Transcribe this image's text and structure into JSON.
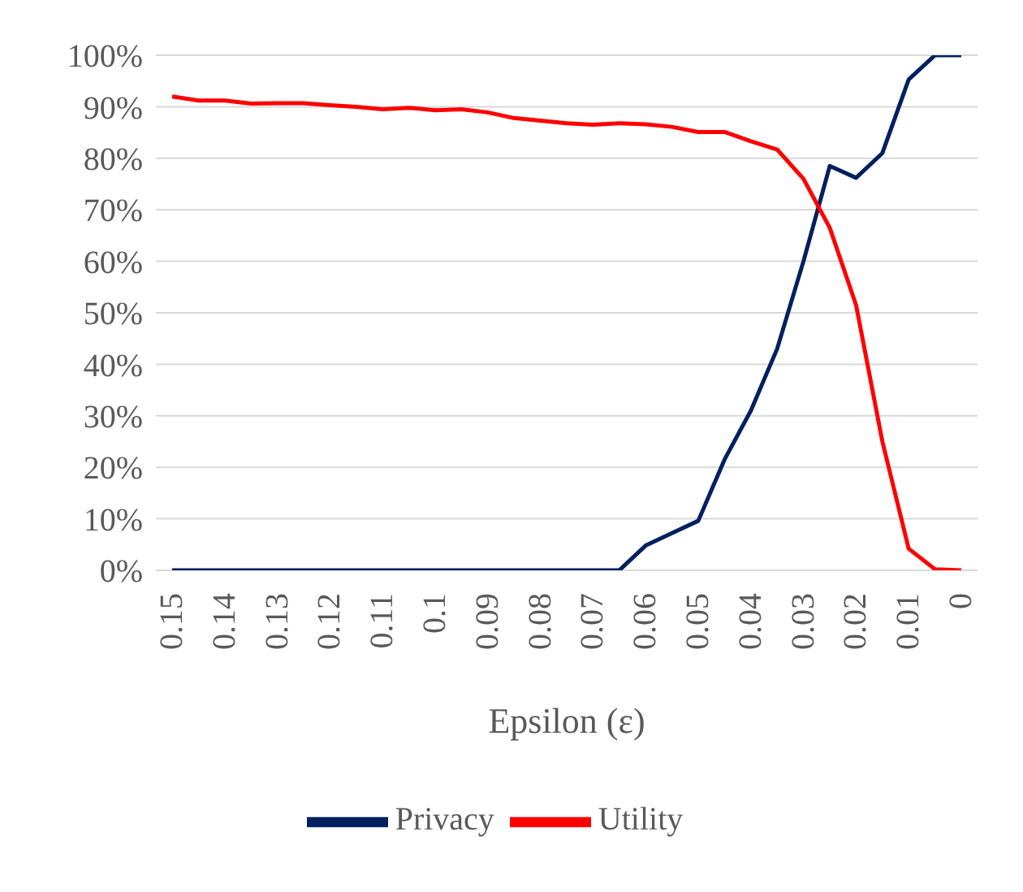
{
  "chart_data": {
    "type": "line",
    "xlabel": "Epsilon (ε)",
    "categories": [
      "0.15",
      null,
      "0.14",
      null,
      "0.13",
      null,
      "0.12",
      null,
      "0.11",
      null,
      "0.1",
      null,
      "0.09",
      null,
      "0.08",
      null,
      "0.07",
      null,
      "0.06",
      null,
      "0.05",
      null,
      "0.04",
      null,
      "0.03",
      null,
      "0.02",
      null,
      "0.01",
      null,
      "0"
    ],
    "series": [
      {
        "name": "Privacy",
        "color": "#002060",
        "values": [
          0,
          0,
          0,
          0,
          0,
          0,
          0,
          0,
          0,
          0,
          0,
          0,
          0,
          0,
          0,
          0,
          0,
          0,
          4.8,
          7.2,
          9.6,
          21.5,
          31,
          43,
          60,
          78.5,
          76.2,
          81,
          95.3,
          100,
          100
        ]
      },
      {
        "name": "Utility",
        "color": "#ff0000",
        "values": [
          92,
          91.2,
          91.2,
          90.6,
          90.7,
          90.7,
          90.3,
          90,
          89.5,
          89.8,
          89.3,
          89.5,
          88.9,
          87.8,
          87.3,
          86.8,
          86.5,
          86.8,
          86.6,
          86.1,
          85.1,
          85.1,
          83.3,
          81.7,
          76,
          66.5,
          51.5,
          25,
          4.2,
          0.2,
          0
        ]
      }
    ],
    "ylim": [
      0,
      100
    ],
    "yticks": [
      {
        "value": 0,
        "label": "0%"
      },
      {
        "value": 10,
        "label": "10%"
      },
      {
        "value": 20,
        "label": "20%"
      },
      {
        "value": 30,
        "label": "30%"
      },
      {
        "value": 40,
        "label": "40%"
      },
      {
        "value": 50,
        "label": "50%"
      },
      {
        "value": 60,
        "label": "60%"
      },
      {
        "value": 70,
        "label": "70%"
      },
      {
        "value": 80,
        "label": "80%"
      },
      {
        "value": 90,
        "label": "90%"
      },
      {
        "value": 100,
        "label": "100%"
      }
    ],
    "grid": "y",
    "legend": "bottom",
    "marker": "none",
    "line_style": "solid"
  }
}
